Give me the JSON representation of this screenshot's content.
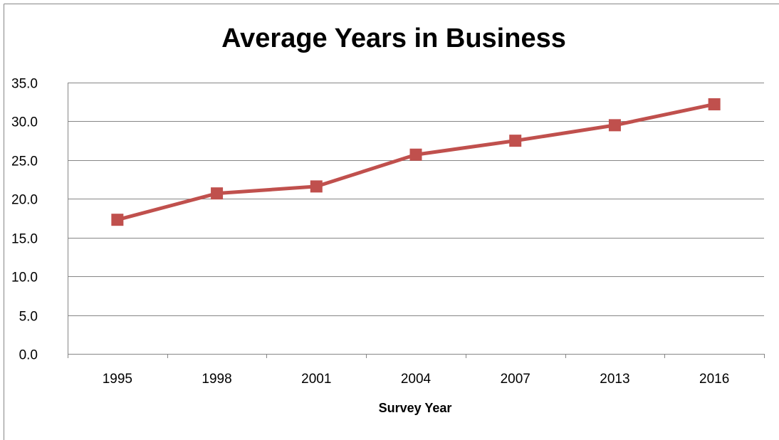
{
  "chart_data": {
    "type": "line",
    "title": "Average Years in Business",
    "xlabel": "Survey Year",
    "ylabel": "",
    "categories": [
      "1995",
      "1998",
      "2001",
      "2004",
      "2007",
      "2013",
      "2016"
    ],
    "series": [
      {
        "values": [
          17.3,
          20.7,
          21.6,
          25.7,
          27.5,
          29.5,
          32.2
        ],
        "color": "#c0504d",
        "marker": "square"
      }
    ],
    "ylim": [
      0,
      35
    ],
    "yticks": [
      "0.0",
      "5.0",
      "10.0",
      "15.0",
      "20.0",
      "25.0",
      "30.0",
      "35.0"
    ],
    "grid": true,
    "legend": "none"
  }
}
